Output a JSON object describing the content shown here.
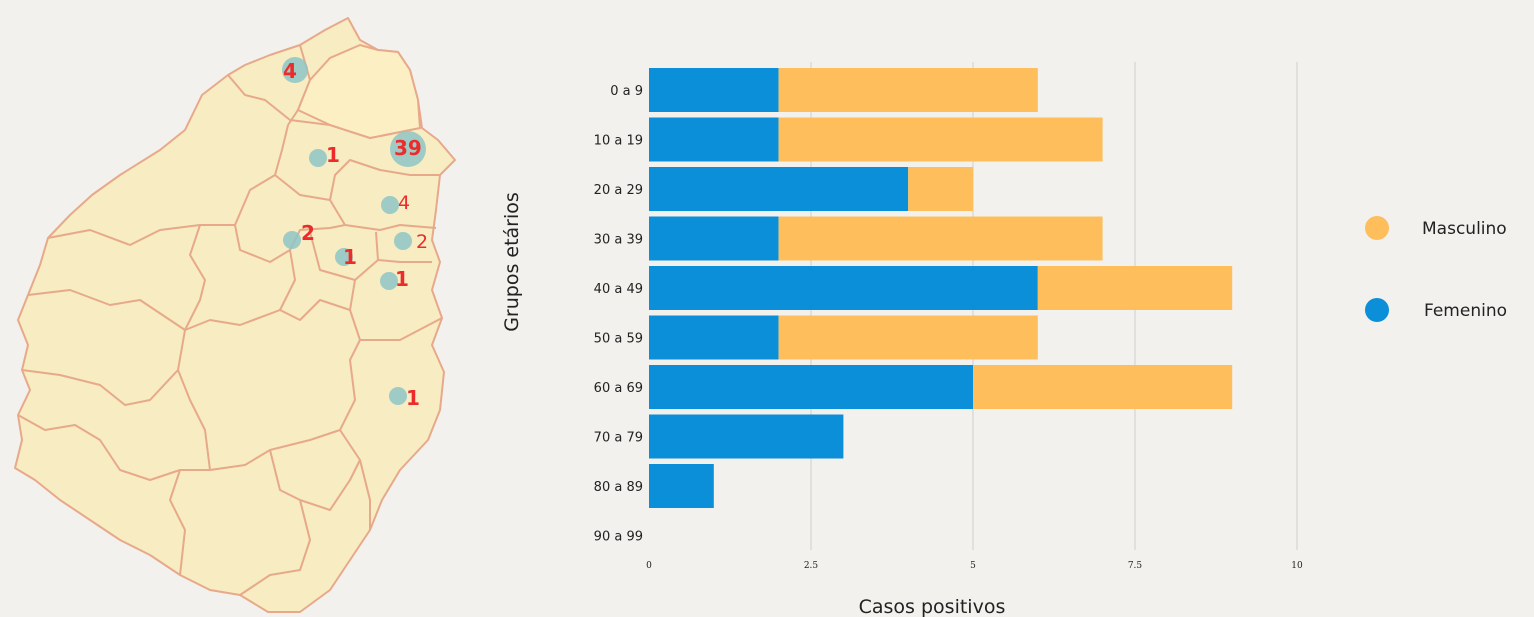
{
  "chart_data": {
    "type": "bar",
    "orientation": "horizontal",
    "stacked": true,
    "categories": [
      "0 a 9",
      "10 a 19",
      "20 a 29",
      "30 a 39",
      "40 a 49",
      "50 a 59",
      "60 a 69",
      "70 a 79",
      "80 a 89",
      "90 a 99"
    ],
    "series": [
      {
        "name": "Femenino",
        "color": "#0a8fd8",
        "values": [
          2,
          2,
          4,
          2,
          6,
          2,
          5,
          3,
          1,
          0
        ]
      },
      {
        "name": "Masculino",
        "color": "#fdbe5b",
        "values": [
          4,
          5,
          1,
          5,
          3,
          4,
          4,
          0,
          0,
          0
        ]
      }
    ],
    "xticks": [
      "0",
      "2.5",
      "5",
      "7.5",
      "10"
    ],
    "xlim": [
      0,
      10
    ],
    "xlabel": "Casos positivos",
    "ylabel": "Grupos etários",
    "grid": "vertical",
    "legend": {
      "placement": "right",
      "items": [
        {
          "label": "Masculino",
          "color": "#fdbe5b"
        },
        {
          "label": "Femenino",
          "color": "#0a8fd8"
        }
      ]
    }
  },
  "map": {
    "fill_color": "#f7ecc2",
    "highlight_fill": "#fcefc4",
    "border_color": "#e7a98a",
    "bubble_color": "#8ec6c6",
    "label_color": "#ee2b2b",
    "markers": [
      {
        "value": 4,
        "label": "4",
        "bold": true
      },
      {
        "value": 1,
        "label": "1",
        "bold": true
      },
      {
        "value": 39,
        "label": "39",
        "bold": true
      },
      {
        "value": 4,
        "label": "4",
        "bold": false
      },
      {
        "value": 2,
        "label": "2",
        "bold": true
      },
      {
        "value": 2,
        "label": "2",
        "bold": false
      },
      {
        "value": 1,
        "label": "1",
        "bold": true
      },
      {
        "value": 1,
        "label": "1",
        "bold": true
      },
      {
        "value": 1,
        "label": "1",
        "bold": true
      }
    ]
  }
}
